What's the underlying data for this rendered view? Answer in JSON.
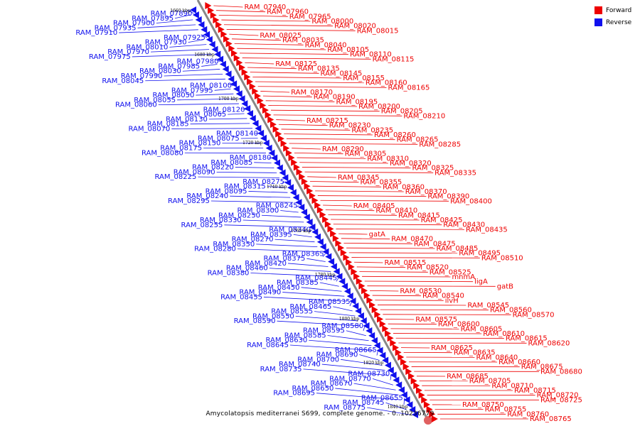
{
  "colors": {
    "forward": "#ee0000",
    "reverse": "#1010ee",
    "axis": "#888888"
  },
  "legend": [
    {
      "label": "Forward",
      "color": "#ee0000"
    },
    {
      "label": "Reverse",
      "color": "#1010ee"
    }
  ],
  "caption": "Amycolatopsis mediterranei S699, complete genome. - 0..10236779",
  "ticks": [
    "1660 kbp",
    "1680 kbp",
    "1700 kbp",
    "1720 kbp",
    "1740 kbp",
    "1760 kbp",
    "1780 kbp",
    "1800 kbp",
    "1820 kbp",
    "1840 kbp"
  ],
  "forward_genes": [
    "RAM_07940",
    "RAM_07960",
    "RAM_07965",
    "RAM_08000",
    "RAM_08020",
    "RAM_08015",
    "RAM_08025",
    "RAM_08035",
    "RAM_08040",
    "RAM_08105",
    "RAM_08110",
    "RAM_08115",
    "RAM_08125",
    "RAM_08135",
    "RAM_08145",
    "RAM_08155",
    "RAM_08160",
    "RAM_08165",
    "RAM_08170",
    "RAM_08190",
    "RAM_08195",
    "RAM_08200",
    "RAM_08205",
    "RAM_08210",
    "RAM_08215",
    "RAM_08230",
    "RAM_08235",
    "RAM_08260",
    "RAM_08265",
    "RAM_08285",
    "RAM_08290",
    "RAM_08305",
    "RAM_08310",
    "RAM_08320",
    "RAM_08325",
    "RAM_08335",
    "RAM_08345",
    "RAM_08355",
    "RAM_08360",
    "RAM_08370",
    "RAM_08390",
    "RAM_08400",
    "RAM_08405",
    "RAM_08410",
    "RAM_08415",
    "RAM_08425",
    "RAM_08430",
    "RAM_08435",
    "gatA",
    "RAM_08470",
    "RAM_08475",
    "RAM_08485",
    "RAM_08495",
    "RAM_08510",
    "RAM_08515",
    "RAM_08520",
    "RAM_08525",
    "mnmA",
    "ligA",
    "gatB",
    "RAM_08530",
    "RAM_08540",
    "ilvH",
    "RAM_08545",
    "RAM_08560",
    "RAM_08570",
    "RAM_08575",
    "RAM_08600",
    "RAM_08605",
    "RAM_08610",
    "RAM_08615",
    "RAM_08620",
    "RAM_08625",
    "RAM_08635",
    "RAM_08640",
    "RAM_08660",
    "RAM_08675",
    "RAM_08680",
    "RAM_08685",
    "RAM_08705",
    "RAM_08710",
    "RAM_08715",
    "RAM_08720",
    "RAM_08725",
    "RAM_08750",
    "RAM_08755",
    "RAM_08760",
    "RAM_08765"
  ],
  "reverse_genes": [
    "RAM_07890",
    "RAM_07895",
    "RAM_07900",
    "RAM_07935",
    "RAM_07910",
    "RAM_07925",
    "RAM_07930",
    "RAM_08010",
    "RAM_07970",
    "RAM_07975",
    "RAM_07980",
    "RAM_07985",
    "RAM_08030",
    "RAM_07990",
    "RAM_08045",
    "RAM_08100",
    "RAM_07995",
    "RAM_08050",
    "RAM_08055",
    "RAM_08060",
    "RAM_08120",
    "RAM_08065",
    "RAM_08130",
    "RAM_08185",
    "RAM_08070",
    "RAM_08140",
    "RAM_08075",
    "RAM_08150",
    "RAM_08175",
    "RAM_08080",
    "RAM_08180",
    "RAM_08085",
    "RAM_08220",
    "RAM_08090",
    "RAM_08225",
    "RAM_08275",
    "RAM_08315",
    "RAM_08095",
    "RAM_08240",
    "RAM_08295",
    "RAM_08245",
    "RAM_08300",
    "RAM_08250",
    "RAM_08330",
    "RAM_08255",
    "RAM_08340",
    "RAM_08395",
    "RAM_08270",
    "RAM_08350",
    "RAM_08280",
    "RAM_08365",
    "RAM_08375",
    "RAM_08420",
    "RAM_08460",
    "RAM_08380",
    "RAM_08445",
    "RAM_08385",
    "RAM_08450",
    "RAM_08490",
    "RAM_08455",
    "RAM_08535",
    "RAM_08465",
    "RAM_08555",
    "RAM_08550",
    "RAM_08590",
    "RAM_08580",
    "RAM_08595",
    "RAM_08585",
    "RAM_08630",
    "RAM_08645",
    "RAM_08665",
    "RAM_08690",
    "RAM_08700",
    "RAM_08740",
    "RAM_08735",
    "RAM_08730",
    "RAM_08770",
    "RAM_08670",
    "RAM_08650",
    "RAM_08695",
    "RAM_08655",
    "RAM_08745",
    "RAM_08775"
  ]
}
